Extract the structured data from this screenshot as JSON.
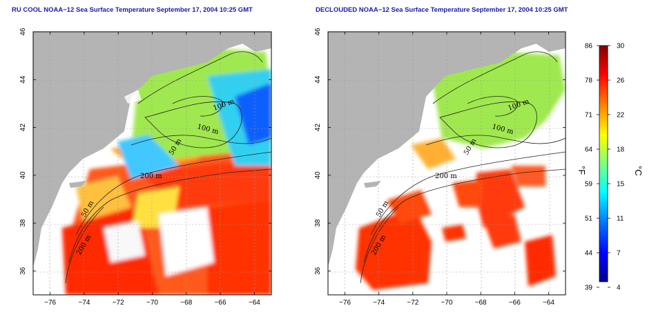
{
  "panels": [
    {
      "title": "RU COOL NOAA−12 Sea Surface Temperature September 17, 2004 10:25 GMT",
      "contours": [
        "100 m",
        "100 m",
        "50 m",
        "200 m",
        "50 m",
        "200 m"
      ],
      "variant": "full"
    },
    {
      "title": "DECLOUDED NOAA−12 Sea Surface Temperature September 17, 2004 10:25 GMT",
      "contours": [
        "100 m",
        "100 m",
        "50 m",
        "200 m",
        "50 m",
        "200 m"
      ],
      "variant": "declouded"
    }
  ],
  "axes": {
    "x_ticks": [
      "−76",
      "−74",
      "−72",
      "−70",
      "−68",
      "−66",
      "−64"
    ],
    "y_ticks": [
      "46",
      "44",
      "42",
      "40",
      "38",
      "36"
    ]
  },
  "colorbar": {
    "fahrenheit_label": "°F",
    "celsius_label": "°C",
    "fahrenheit_ticks": [
      "86",
      "78",
      "71",
      "64",
      "59",
      "51",
      "44",
      "39"
    ],
    "celsius_ticks": [
      "30",
      "26",
      "22",
      "18",
      "15",
      "11",
      "7",
      "4"
    ],
    "colors": [
      "#00008f",
      "#0000ff",
      "#0080ff",
      "#00ffff",
      "#80ff80",
      "#ffff00",
      "#ff8000",
      "#ff0000",
      "#800000"
    ]
  },
  "colors": {
    "land": "#b4b4b4",
    "title": "#1a1aa8",
    "cloud": "#ffffff"
  }
}
